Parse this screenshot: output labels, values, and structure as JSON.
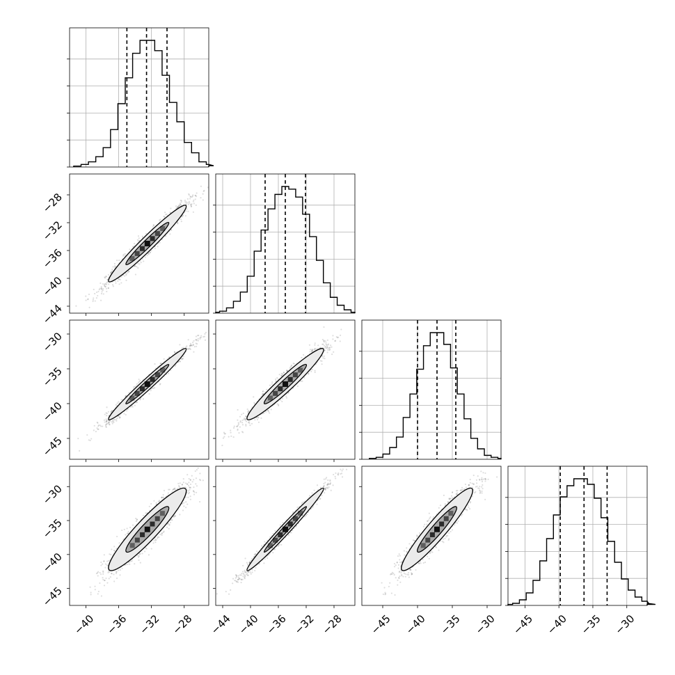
{
  "chart_data": {
    "type": "corner",
    "grid": true,
    "parameters": [
      {
        "range": [
          -42.0,
          -25.0
        ],
        "ticks": [
          -40,
          -36,
          -32,
          -28
        ],
        "tick_labels": [
          "−40",
          "−36",
          "−32",
          "−28"
        ],
        "mean": -32.5,
        "sd": 2.5,
        "quantiles": [
          -35.0,
          -32.6,
          -30.1
        ]
      },
      {
        "range": [
          -45.0,
          -25.0
        ],
        "ticks": [
          -44,
          -40,
          -36,
          -32,
          -28
        ],
        "tick_labels": [
          "−44",
          "−40",
          "−36",
          "−32",
          "−28"
        ],
        "mean": -35.0,
        "sd": 2.9,
        "quantiles": [
          -37.9,
          -35.0,
          -32.1
        ]
      },
      {
        "range": [
          -48.0,
          -28.0
        ],
        "ticks": [
          -45,
          -40,
          -35,
          -30
        ],
        "tick_labels": [
          "−45",
          "−40",
          "−35",
          "−30"
        ],
        "mean": -37.2,
        "sd": 2.7,
        "quantiles": [
          -40.0,
          -37.2,
          -34.5
        ]
      },
      {
        "range": [
          -47.5,
          -27.0
        ],
        "ticks": [
          -45,
          -40,
          -35,
          -30
        ],
        "tick_labels": [
          "−45",
          "−40",
          "−35",
          "−30"
        ],
        "mean": -36.3,
        "sd": 3.2,
        "quantiles": [
          -39.8,
          -36.3,
          -32.9
        ]
      }
    ],
    "histograms": [
      {
        "panel": "0-0",
        "counts": [
          0.7,
          2,
          4,
          8,
          15,
          29,
          49,
          69,
          88,
          98,
          98,
          90,
          71,
          50,
          35,
          19,
          11,
          4,
          2,
          1
        ]
      },
      {
        "panel": "1-1",
        "counts": [
          0.7,
          1.5,
          4,
          9,
          16,
          28,
          47,
          63,
          79,
          90,
          96,
          94,
          88,
          75,
          58,
          40,
          23,
          12,
          6,
          2.5,
          0.7
        ]
      },
      {
        "panel": "2-2",
        "counts": [
          0.7,
          1.5,
          4,
          9,
          17,
          32,
          50,
          69,
          87,
          97,
          97,
          88,
          70,
          50,
          31,
          16,
          8,
          3,
          1.5,
          0.7
        ]
      },
      {
        "panel": "3-3",
        "counts": [
          0.7,
          1.5,
          4,
          9,
          18,
          32,
          48,
          65,
          78,
          86,
          91,
          91,
          87,
          77,
          63,
          46,
          31,
          19,
          11,
          6,
          3,
          1.5,
          0.7
        ]
      }
    ],
    "joint_panels": [
      {
        "panel": "1-0",
        "x_param": 0,
        "y_param": 1,
        "correlation": 0.97
      },
      {
        "panel": "2-0",
        "x_param": 0,
        "y_param": 2,
        "correlation": 0.98
      },
      {
        "panel": "3-0",
        "x_param": 0,
        "y_param": 3,
        "correlation": 0.93
      },
      {
        "panel": "2-1",
        "x_param": 1,
        "y_param": 2,
        "correlation": 0.96
      },
      {
        "panel": "3-1",
        "x_param": 1,
        "y_param": 3,
        "correlation": 0.985
      },
      {
        "panel": "3-2",
        "x_param": 2,
        "y_param": 3,
        "correlation": 0.94
      }
    ],
    "contour_sigmas": [
      1,
      2
    ],
    "colors": {
      "line": "#000000",
      "grid": "#b0b0b0",
      "points": "#000000",
      "contour_outer_fill": "#ebebeb",
      "contour_inner_fill": "#a9a9a9",
      "density_cells": "#111111"
    }
  }
}
